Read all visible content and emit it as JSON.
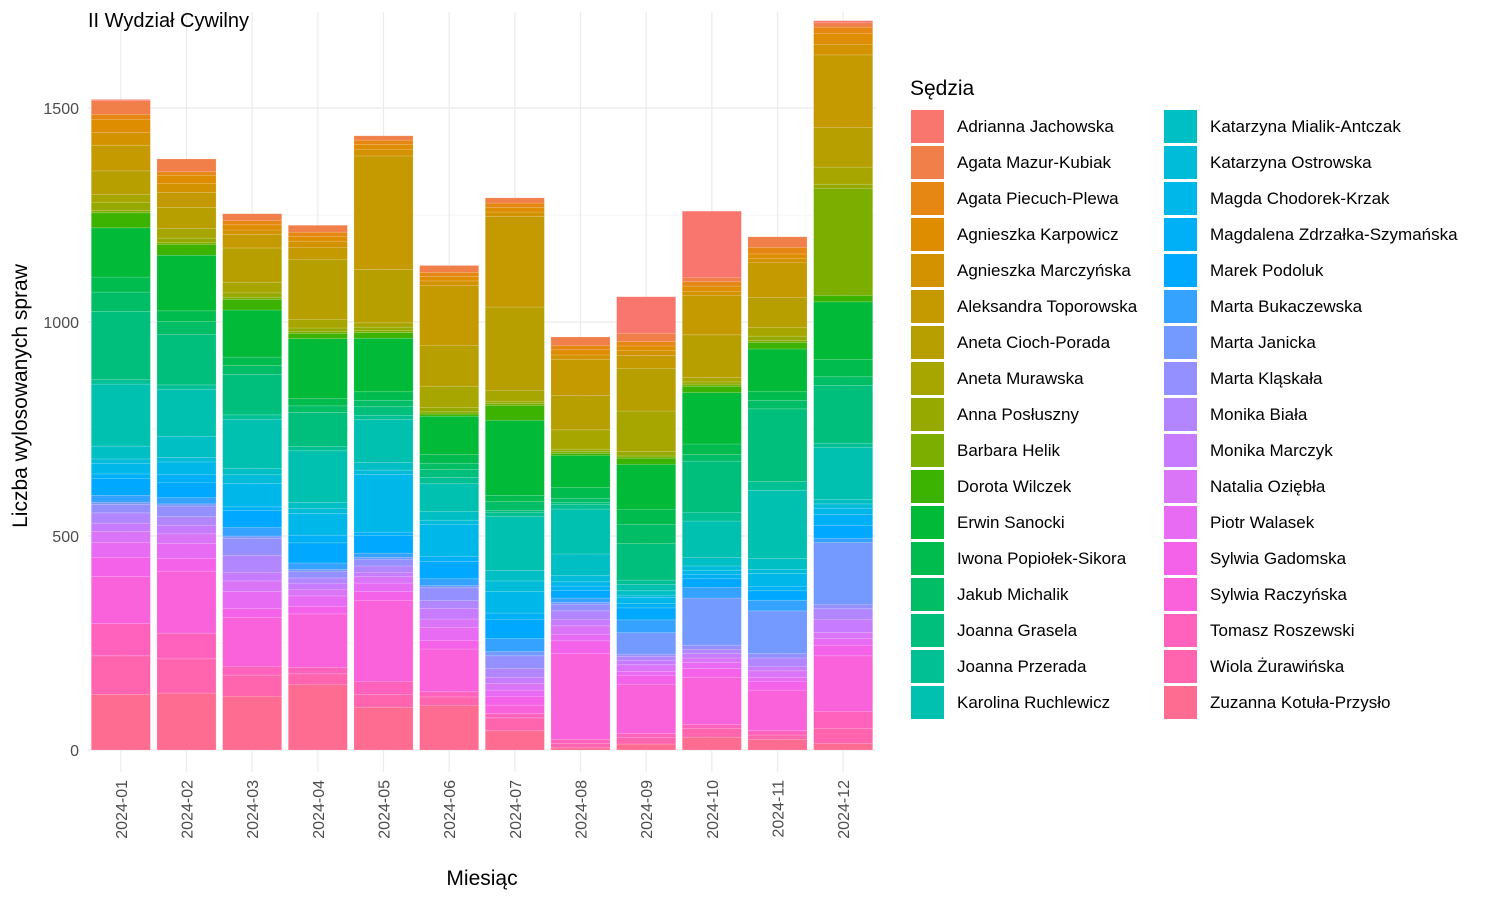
{
  "chart_data": {
    "type": "bar",
    "stacked": true,
    "title": "II Wydział Cywilny",
    "xlabel": "Miesiąc",
    "ylabel": "Liczba wylosowanych spraw",
    "ylim": [
      0,
      1700
    ],
    "yticks": [
      0,
      500,
      1000,
      1500
    ],
    "grid": true,
    "legend_title": "Sędzia",
    "legend_position": "right",
    "categories": [
      "2024-01",
      "2024-02",
      "2024-03",
      "2024-04",
      "2024-05",
      "2024-06",
      "2024-07",
      "2024-08",
      "2024-09",
      "2024-10",
      "2024-11",
      "2024-12"
    ],
    "series": [
      {
        "name": "Adrianna Jachowska",
        "color": "#F8766D",
        "values": [
          3,
          0,
          0,
          0,
          0,
          0,
          0,
          0,
          85,
          155,
          0,
          5
        ]
      },
      {
        "name": "Agata Mazur-Kubiak",
        "color": "#F07F4A",
        "values": [
          32,
          30,
          16,
          16,
          10,
          16,
          12,
          20,
          20,
          10,
          25,
          10
        ]
      },
      {
        "name": "Agata Piecuch-Plewa",
        "color": "#E68613",
        "values": [
          12,
          8,
          10,
          10,
          10,
          10,
          10,
          10,
          10,
          10,
          15,
          15
        ]
      },
      {
        "name": "Agnieszka Karpowicz",
        "color": "#DE8C00",
        "values": [
          30,
          20,
          12,
          11,
          12,
          10,
          11,
          12,
          10,
          12,
          10,
          25
        ]
      },
      {
        "name": "Agnieszka Marczyńska",
        "color": "#D39200",
        "values": [
          30,
          20,
          10,
          15,
          15,
          11,
          10,
          10,
          12,
          10,
          10,
          25
        ]
      },
      {
        "name": "Aleksandra Toporowska",
        "color": "#C49A00",
        "values": [
          60,
          35,
          32,
          28,
          265,
          140,
          212,
          85,
          30,
          92,
          82,
          170
        ]
      },
      {
        "name": "Aneta Cioch-Porada",
        "color": "#B79F00",
        "values": [
          55,
          50,
          80,
          140,
          125,
          95,
          195,
          80,
          100,
          100,
          70,
          92
        ]
      },
      {
        "name": "Aneta Murawska",
        "color": "#A7A600",
        "values": [
          18,
          22,
          25,
          20,
          10,
          50,
          25,
          45,
          95,
          10,
          20,
          40
        ]
      },
      {
        "name": "Anna Posłuszny",
        "color": "#95A900",
        "values": [
          20,
          10,
          10,
          8,
          8,
          10,
          5,
          5,
          10,
          5,
          10,
          10
        ]
      },
      {
        "name": "Barbara Helik",
        "color": "#7CAE00",
        "values": [
          5,
          5,
          5,
          5,
          5,
          5,
          5,
          5,
          5,
          5,
          5,
          250
        ]
      },
      {
        "name": "Dorota Wilczek",
        "color": "#3BB300",
        "values": [
          35,
          25,
          25,
          12,
          13,
          5,
          35,
          5,
          15,
          15,
          15,
          15
        ]
      },
      {
        "name": "Erwin Sanocki",
        "color": "#00BA38",
        "values": [
          115,
          130,
          110,
          140,
          125,
          90,
          175,
          75,
          105,
          120,
          100,
          135
        ]
      },
      {
        "name": "Iwona Popiołek-Sikora",
        "color": "#00BB4E",
        "values": [
          35,
          25,
          20,
          17,
          20,
          20,
          15,
          25,
          35,
          25,
          20,
          40
        ]
      },
      {
        "name": "Jakub Michalik",
        "color": "#00BD66",
        "values": [
          45,
          30,
          20,
          15,
          15,
          15,
          20,
          10,
          45,
          15,
          20,
          20
        ]
      },
      {
        "name": "Joanna Grasela",
        "color": "#00BF7D",
        "values": [
          160,
          118,
          95,
          80,
          20,
          18,
          5,
          5,
          85,
          120,
          170,
          135
        ]
      },
      {
        "name": "Joanna Przerada",
        "color": "#00C094",
        "values": [
          10,
          10,
          10,
          10,
          10,
          15,
          10,
          10,
          10,
          20,
          20,
          10
        ]
      },
      {
        "name": "Karolina Ruchlewicz",
        "color": "#00C0AF",
        "values": [
          145,
          110,
          115,
          120,
          100,
          65,
          125,
          105,
          15,
          85,
          160,
          122
        ]
      },
      {
        "name": "Katarzyna Mialik-Antczak",
        "color": "#00BFC4",
        "values": [
          30,
          50,
          15,
          15,
          18,
          20,
          25,
          50,
          10,
          20,
          25,
          10
        ]
      },
      {
        "name": "Katarzyna Ostrowska",
        "color": "#00BCD8",
        "values": [
          10,
          10,
          20,
          12,
          10,
          10,
          25,
          15,
          5,
          10,
          10,
          10
        ]
      },
      {
        "name": "Magda Chodorek-Krzak",
        "color": "#00B7E9",
        "values": [
          25,
          30,
          55,
          50,
          135,
          75,
          50,
          10,
          15,
          10,
          30,
          15
        ]
      },
      {
        "name": "Magdalena Zdrzałka-Szymańska",
        "color": "#00B0F6",
        "values": [
          10,
          18,
          8,
          18,
          8,
          12,
          15,
          10,
          10,
          10,
          10,
          25
        ]
      },
      {
        "name": "Marek Podoluk",
        "color": "#00A9FF",
        "values": [
          40,
          35,
          40,
          47,
          41,
          40,
          45,
          18,
          28,
          20,
          22,
          30
        ]
      },
      {
        "name": "Marta Bukaczewska",
        "color": "#35A2FF",
        "values": [
          16,
          15,
          20,
          15,
          10,
          16,
          30,
          10,
          30,
          25,
          25,
          10
        ]
      },
      {
        "name": "Marta Janicka",
        "color": "#7499FF",
        "values": [
          5,
          5,
          5,
          5,
          5,
          5,
          10,
          5,
          50,
          110,
          100,
          145
        ]
      },
      {
        "name": "Marta Kląskała",
        "color": "#9590FF",
        "values": [
          20,
          25,
          40,
          15,
          15,
          30,
          30,
          15,
          5,
          10,
          10,
          10
        ]
      },
      {
        "name": "Monika Biała",
        "color": "#B186FF",
        "values": [
          24,
          20,
          40,
          12,
          15,
          18,
          20,
          20,
          10,
          10,
          20,
          25
        ]
      },
      {
        "name": "Monika Marczyk",
        "color": "#C77CFF",
        "values": [
          20,
          20,
          20,
          15,
          10,
          25,
          15,
          15,
          10,
          10,
          10,
          30
        ]
      },
      {
        "name": "Natalia Oziębła",
        "color": "#DA75F8",
        "values": [
          25,
          22,
          25,
          15,
          15,
          20,
          15,
          20,
          15,
          10,
          15,
          15
        ]
      },
      {
        "name": "Piotr Walasek",
        "color": "#E76BF3",
        "values": [
          35,
          35,
          40,
          24,
          20,
          30,
          15,
          15,
          10,
          15,
          10,
          15
        ]
      },
      {
        "name": "Sylwia Gadomska",
        "color": "#F362E8",
        "values": [
          45,
          30,
          20,
          18,
          20,
          20,
          20,
          30,
          20,
          20,
          20,
          25
        ]
      },
      {
        "name": "Sylwia Raczyńska",
        "color": "#FA62DB",
        "values": [
          110,
          145,
          115,
          125,
          190,
          100,
          20,
          200,
          115,
          110,
          95,
          130
        ]
      },
      {
        "name": "Tomasz Roszewski",
        "color": "#FF62BC",
        "values": [
          75,
          60,
          20,
          15,
          30,
          12,
          10,
          10,
          10,
          10,
          10,
          40
        ]
      },
      {
        "name": "Wiola Żurawińska",
        "color": "#FF65AE",
        "values": [
          90,
          80,
          50,
          25,
          30,
          20,
          30,
          10,
          15,
          20,
          10,
          35
        ]
      },
      {
        "name": "Zuzanna Kotuła-Przysło",
        "color": "#FF6C91",
        "values": [
          130,
          133,
          125,
          153,
          100,
          104,
          45,
          5,
          14,
          30,
          25,
          15
        ]
      }
    ]
  }
}
